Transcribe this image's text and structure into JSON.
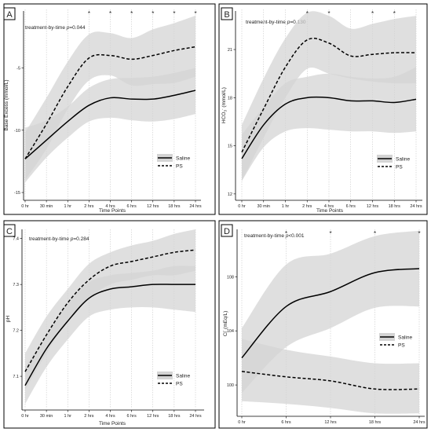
{
  "figure": {
    "background": "#ffffff",
    "band_color": "#d4d4d4",
    "line_color": "#000000"
  },
  "chart_data": [
    {
      "type": "line",
      "panel_label": "A",
      "annotation": "treatment-by-time p=0.044",
      "annotation_prefix": "treatment-by-time ",
      "annotation_p": "p",
      "annotation_value": "=0.044",
      "ylabel": "Base Excess (mmol/L)",
      "xlabel": "Time Points",
      "categories": [
        "0 hr",
        "30 min",
        "1 hr",
        "2 hrs",
        "4 hrs",
        "6 hrs",
        "12 hrs",
        "18 hrs",
        "24 hrs"
      ],
      "ylim": [
        -15.5,
        -0.3
      ],
      "yticks": [
        -15,
        -10,
        -5
      ],
      "significance_marks": [
        3,
        4,
        5,
        6,
        7,
        8
      ],
      "legend_position": "bottom-right",
      "series": [
        {
          "name": "Saline",
          "dash": "solid",
          "values": [
            -12.3,
            -10.8,
            -9.3,
            -8.0,
            -7.4,
            -7.5,
            -7.5,
            -7.2,
            -6.8
          ],
          "lower": [
            -14.2,
            -12.2,
            -10.6,
            -9.3,
            -9.0,
            -9.2,
            -9.3,
            -9.1,
            -8.7
          ],
          "upper": [
            -9.8,
            -9.2,
            -8.1,
            -6.6,
            -5.9,
            -5.8,
            -5.7,
            -5.4,
            -5.0
          ]
        },
        {
          "name": "PS",
          "dash": "dashed",
          "values": [
            -12.3,
            -9.5,
            -6.5,
            -4.2,
            -4.0,
            -4.3,
            -4.0,
            -3.6,
            -3.3
          ],
          "lower": [
            -14.0,
            -11.5,
            -8.3,
            -6.0,
            -5.6,
            -6.4,
            -6.3,
            -6.2,
            -5.7
          ],
          "upper": [
            -10.2,
            -7.4,
            -4.5,
            -2.3,
            -2.2,
            -2.6,
            -1.9,
            -1.4,
            -0.8
          ]
        }
      ]
    },
    {
      "type": "line",
      "panel_label": "B",
      "annotation": "treatment-by-time p=0.130",
      "annotation_prefix": "treatment-by-time ",
      "annotation_p": "p",
      "annotation_value": "=0.130",
      "ylabel": "HCO3- (mmol/L)",
      "ylabel_main": "HCO",
      "ylabel_sub": "3",
      "ylabel_sup": "-",
      "ylabel_rest": " (mmol/L)",
      "xlabel": "Time Points",
      "categories": [
        "0 hr",
        "30 min",
        "1 hr",
        "2 hrs",
        "4 hrs",
        "6 hrs",
        "12 hrs",
        "18 hrs",
        "24 hrs"
      ],
      "ylim": [
        11.7,
        23.5
      ],
      "yticks": [
        12,
        15,
        18,
        21
      ],
      "significance_marks": [
        3,
        4,
        6,
        7
      ],
      "legend_position": "bottom-right",
      "series": [
        {
          "name": "Saline",
          "dash": "solid",
          "values": [
            14.2,
            16.3,
            17.6,
            18.0,
            18.0,
            17.8,
            17.8,
            17.7,
            17.9
          ],
          "lower": [
            12.8,
            14.9,
            15.9,
            16.1,
            16.0,
            15.9,
            15.9,
            15.8,
            15.9
          ],
          "upper": [
            15.7,
            17.4,
            18.9,
            19.3,
            19.5,
            19.3,
            19.2,
            19.3,
            19.9
          ]
        },
        {
          "name": "PS",
          "dash": "dashed",
          "values": [
            14.6,
            17.3,
            19.9,
            21.6,
            21.4,
            20.6,
            20.7,
            20.8,
            20.8
          ],
          "lower": [
            12.8,
            15.5,
            18.0,
            19.8,
            19.5,
            19.2,
            19.0,
            18.9,
            18.9
          ],
          "upper": [
            16.3,
            19.2,
            21.7,
            23.3,
            23.1,
            22.3,
            22.6,
            22.9,
            23.1
          ]
        }
      ]
    },
    {
      "type": "line",
      "panel_label": "C",
      "annotation": "treatment-by-time p=0.284",
      "annotation_prefix": "treatment-by-time ",
      "annotation_p": "p",
      "annotation_value": "=0.284",
      "ylabel": "pH",
      "xlabel": "Time Points",
      "categories": [
        "0 hr",
        "30 min",
        "1 hr",
        "2 hrs",
        "4 hrs",
        "6 hrs",
        "12 hrs",
        "18 hrs",
        "24 hrs"
      ],
      "ylim": [
        7.03,
        7.42
      ],
      "yticks": [
        7.1,
        7.2,
        7.3,
        7.4
      ],
      "significance_marks": [],
      "legend_position": "bottom-right",
      "series": [
        {
          "name": "Saline",
          "dash": "solid",
          "values": [
            7.08,
            7.16,
            7.22,
            7.27,
            7.29,
            7.295,
            7.3,
            7.3,
            7.3
          ],
          "lower": [
            7.04,
            7.12,
            7.18,
            7.23,
            7.245,
            7.25,
            7.25,
            7.245,
            7.24
          ],
          "upper": [
            7.12,
            7.19,
            7.26,
            7.305,
            7.32,
            7.325,
            7.33,
            7.34,
            7.34
          ]
        },
        {
          "name": "PS",
          "dash": "dashed",
          "values": [
            7.11,
            7.19,
            7.26,
            7.31,
            7.34,
            7.35,
            7.36,
            7.37,
            7.375
          ],
          "lower": [
            7.07,
            7.15,
            7.22,
            7.27,
            7.3,
            7.31,
            7.32,
            7.32,
            7.33
          ],
          "upper": [
            7.15,
            7.23,
            7.29,
            7.345,
            7.37,
            7.385,
            7.395,
            7.41,
            7.42
          ]
        }
      ]
    },
    {
      "type": "line",
      "panel_label": "D",
      "annotation": "treatment-by-time p<0.001",
      "annotation_prefix": "treatment-by-time ",
      "annotation_p": "p",
      "annotation_value": "<0.001",
      "ylabel": "Cl- (mEq/L)",
      "ylabel_main": "Cl",
      "ylabel_sup": "-",
      "ylabel_rest": " (mEq/L)",
      "xlabel": "",
      "categories": [
        "0 hr",
        "6 hrs",
        "12 hrs",
        "18 hrs",
        "24 hrs"
      ],
      "ylim": [
        97.8,
        111.5
      ],
      "yticks": [
        100,
        104,
        108
      ],
      "significance_marks": [
        1,
        2,
        3,
        4
      ],
      "legend_position": "bottom-right",
      "series": [
        {
          "name": "Saline",
          "dash": "solid",
          "values": [
            102.0,
            105.8,
            106.9,
            108.3,
            108.6
          ],
          "lower": [
            99.4,
            102.8,
            104.2,
            105.7,
            105.8
          ],
          "upper": [
            104.2,
            108.9,
            109.7,
            111.0,
            111.4
          ]
        },
        {
          "name": "PS",
          "dash": "dashed",
          "values": [
            101.0,
            100.6,
            100.3,
            99.7,
            99.7
          ],
          "lower": [
            98.8,
            98.6,
            98.3,
            97.9,
            97.9
          ],
          "upper": [
            103.4,
            102.6,
            102.1,
            101.6,
            101.6
          ]
        }
      ]
    }
  ]
}
